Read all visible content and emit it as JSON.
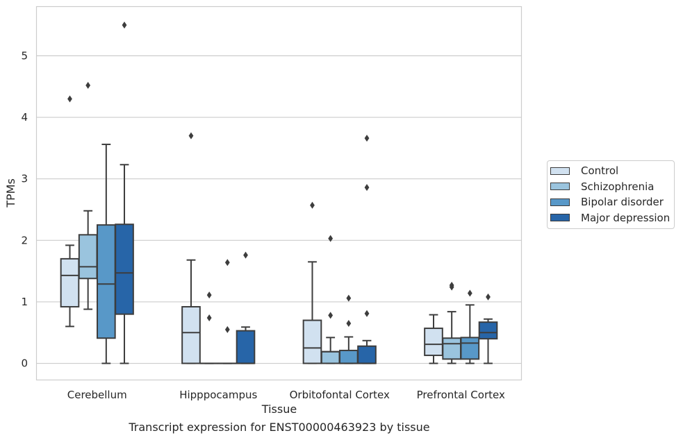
{
  "chart_data": {
    "type": "box",
    "xlabel": "Tissue",
    "ylabel": "TPMs",
    "caption": "Transcript expression for ENST00000463923 by tissue",
    "ylim": [
      -0.27,
      5.8
    ],
    "yticks": [
      0,
      1,
      2,
      3,
      4,
      5
    ],
    "grid": "horizontal",
    "legend_position": "right",
    "categories": [
      "Cerebellum",
      "Hipppocampus",
      "Orbitofontal Cortex",
      "Prefrontal Cortex"
    ],
    "series": [
      {
        "name": "Control",
        "color": "#d1e1f0",
        "boxes": [
          {
            "whislo": 0.6,
            "q1": 0.92,
            "med": 1.43,
            "q3": 1.7,
            "whishi": 1.92,
            "fliers": [
              4.3
            ]
          },
          {
            "whislo": 0.0,
            "q1": 0.0,
            "med": 0.5,
            "q3": 0.92,
            "whishi": 1.68,
            "fliers": [
              3.7
            ]
          },
          {
            "whislo": 0.0,
            "q1": 0.0,
            "med": 0.25,
            "q3": 0.7,
            "whishi": 1.65,
            "fliers": [
              2.57
            ]
          },
          {
            "whislo": 0.0,
            "q1": 0.13,
            "med": 0.31,
            "q3": 0.57,
            "whishi": 0.79,
            "fliers": []
          }
        ]
      },
      {
        "name": "Schizophrenia",
        "color": "#9ac4de",
        "boxes": [
          {
            "whislo": 0.88,
            "q1": 1.38,
            "med": 1.57,
            "q3": 2.09,
            "whishi": 2.48,
            "fliers": [
              4.52
            ]
          },
          {
            "whislo": 0.0,
            "q1": 0.0,
            "med": 0.0,
            "q3": 0.0,
            "whishi": 0.0,
            "fliers": [
              1.11,
              0.74
            ]
          },
          {
            "whislo": 0.0,
            "q1": 0.0,
            "med": 0.19,
            "q3": 0.19,
            "whishi": 0.42,
            "fliers": [
              2.03,
              0.78
            ]
          },
          {
            "whislo": 0.0,
            "q1": 0.07,
            "med": 0.32,
            "q3": 0.41,
            "whishi": 0.84,
            "fliers": [
              1.27,
              1.24
            ]
          }
        ]
      },
      {
        "name": "Bipolar disorder",
        "color": "#5898c8",
        "boxes": [
          {
            "whislo": 0.0,
            "q1": 0.41,
            "med": 1.29,
            "q3": 2.25,
            "whishi": 3.56,
            "fliers": []
          },
          {
            "whislo": 0.0,
            "q1": 0.0,
            "med": 0.0,
            "q3": 0.0,
            "whishi": 0.0,
            "fliers": [
              0.55,
              1.64
            ]
          },
          {
            "whislo": 0.0,
            "q1": 0.0,
            "med": 0.0,
            "q3": 0.21,
            "whishi": 0.43,
            "fliers": [
              1.06,
              0.65
            ]
          },
          {
            "whislo": 0.0,
            "q1": 0.07,
            "med": 0.33,
            "q3": 0.42,
            "whishi": 0.95,
            "fliers": [
              1.14
            ]
          }
        ]
      },
      {
        "name": "Major depression",
        "color": "#2765a8",
        "boxes": [
          {
            "whislo": 0.0,
            "q1": 0.8,
            "med": 1.47,
            "q3": 2.26,
            "whishi": 3.23,
            "fliers": [
              5.5
            ]
          },
          {
            "whislo": 0.0,
            "q1": 0.0,
            "med": 0.0,
            "q3": 0.53,
            "whishi": 0.59,
            "fliers": [
              1.76
            ]
          },
          {
            "whislo": 0.0,
            "q1": 0.0,
            "med": 0.0,
            "q3": 0.28,
            "whishi": 0.37,
            "fliers": [
              3.66,
              2.86,
              0.81
            ]
          },
          {
            "whislo": 0.0,
            "q1": 0.4,
            "med": 0.5,
            "q3": 0.67,
            "whishi": 0.72,
            "fliers": [
              1.08
            ]
          }
        ]
      }
    ]
  }
}
